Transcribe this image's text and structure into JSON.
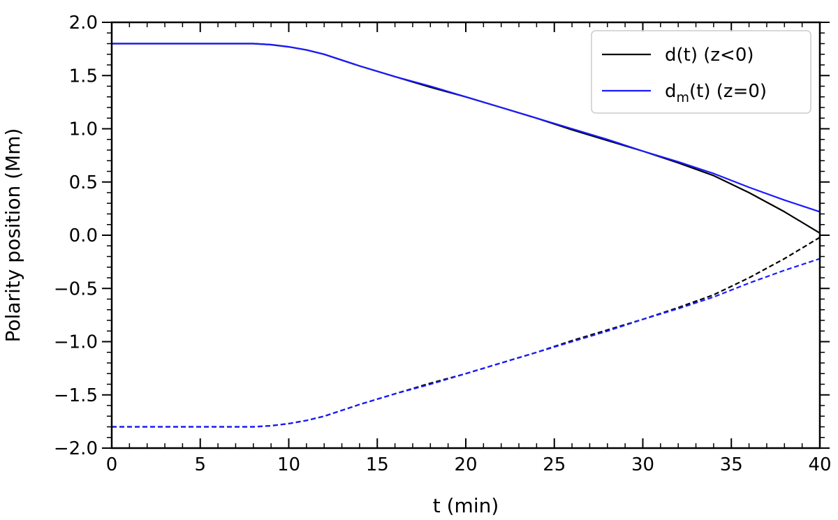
{
  "chart_data": {
    "type": "line",
    "xlabel": "t (min)",
    "ylabel": "Polarity position (Mm)",
    "xlim": [
      0,
      40
    ],
    "ylim": [
      -2.0,
      2.0
    ],
    "x_ticks": [
      0,
      5,
      10,
      15,
      20,
      25,
      30,
      35,
      40
    ],
    "x_tick_labels": [
      "0",
      "5",
      "10",
      "15",
      "20",
      "25",
      "30",
      "35",
      "40"
    ],
    "y_ticks": [
      2.0,
      1.5,
      1.0,
      0.5,
      0.0,
      -0.5,
      -1.0,
      -1.5,
      -2.0
    ],
    "y_tick_labels": [
      "2.0",
      "1.5",
      "1.0",
      "0.5",
      "0.0",
      "−0.5",
      "−1.0",
      "−1.5",
      "−2.0"
    ],
    "grid": false,
    "legend_position": "top-right",
    "legend": [
      {
        "series_index": 0,
        "base": "d(t) (z<0)",
        "sub": "",
        "rest": ""
      },
      {
        "series_index": 2,
        "base": "d",
        "sub": "m",
        "rest": "(t) (z=0)"
      }
    ],
    "series": [
      {
        "color": "#000000",
        "dash": "solid",
        "x": [
          0,
          5,
          8,
          9,
          10,
          11,
          12,
          14,
          16,
          18,
          20,
          22,
          24,
          26,
          28,
          30,
          32,
          34,
          36,
          38,
          40
        ],
        "y": [
          1.8,
          1.8,
          1.8,
          1.79,
          1.77,
          1.74,
          1.7,
          1.59,
          1.49,
          1.39,
          1.3,
          1.2,
          1.1,
          0.99,
          0.89,
          0.79,
          0.68,
          0.56,
          0.4,
          0.22,
          0.02
        ]
      },
      {
        "color": "#000000",
        "dash": "dashed",
        "x": [
          0,
          5,
          8,
          9,
          10,
          11,
          12,
          14,
          16,
          18,
          20,
          22,
          24,
          26,
          28,
          30,
          32,
          34,
          36,
          38,
          40
        ],
        "y": [
          -1.8,
          -1.8,
          -1.8,
          -1.79,
          -1.77,
          -1.74,
          -1.7,
          -1.59,
          -1.49,
          -1.39,
          -1.3,
          -1.2,
          -1.1,
          -0.99,
          -0.89,
          -0.79,
          -0.68,
          -0.56,
          -0.4,
          -0.22,
          -0.02
        ]
      },
      {
        "color": "#1a1aff",
        "dash": "solid",
        "x": [
          0,
          5,
          8,
          9,
          10,
          11,
          12,
          14,
          16,
          18,
          20,
          22,
          24,
          26,
          28,
          30,
          32,
          34,
          36,
          38,
          40
        ],
        "y": [
          1.8,
          1.8,
          1.8,
          1.79,
          1.77,
          1.74,
          1.7,
          1.59,
          1.49,
          1.4,
          1.3,
          1.2,
          1.1,
          1.0,
          0.9,
          0.79,
          0.69,
          0.58,
          0.45,
          0.33,
          0.22
        ]
      },
      {
        "color": "#1a1aff",
        "dash": "dashed",
        "x": [
          0,
          5,
          8,
          9,
          10,
          11,
          12,
          14,
          16,
          18,
          20,
          22,
          24,
          26,
          28,
          30,
          32,
          34,
          36,
          38,
          40
        ],
        "y": [
          -1.8,
          -1.8,
          -1.8,
          -1.79,
          -1.77,
          -1.74,
          -1.7,
          -1.59,
          -1.49,
          -1.4,
          -1.3,
          -1.2,
          -1.1,
          -1.0,
          -0.9,
          -0.79,
          -0.69,
          -0.58,
          -0.45,
          -0.33,
          -0.22
        ]
      }
    ]
  }
}
